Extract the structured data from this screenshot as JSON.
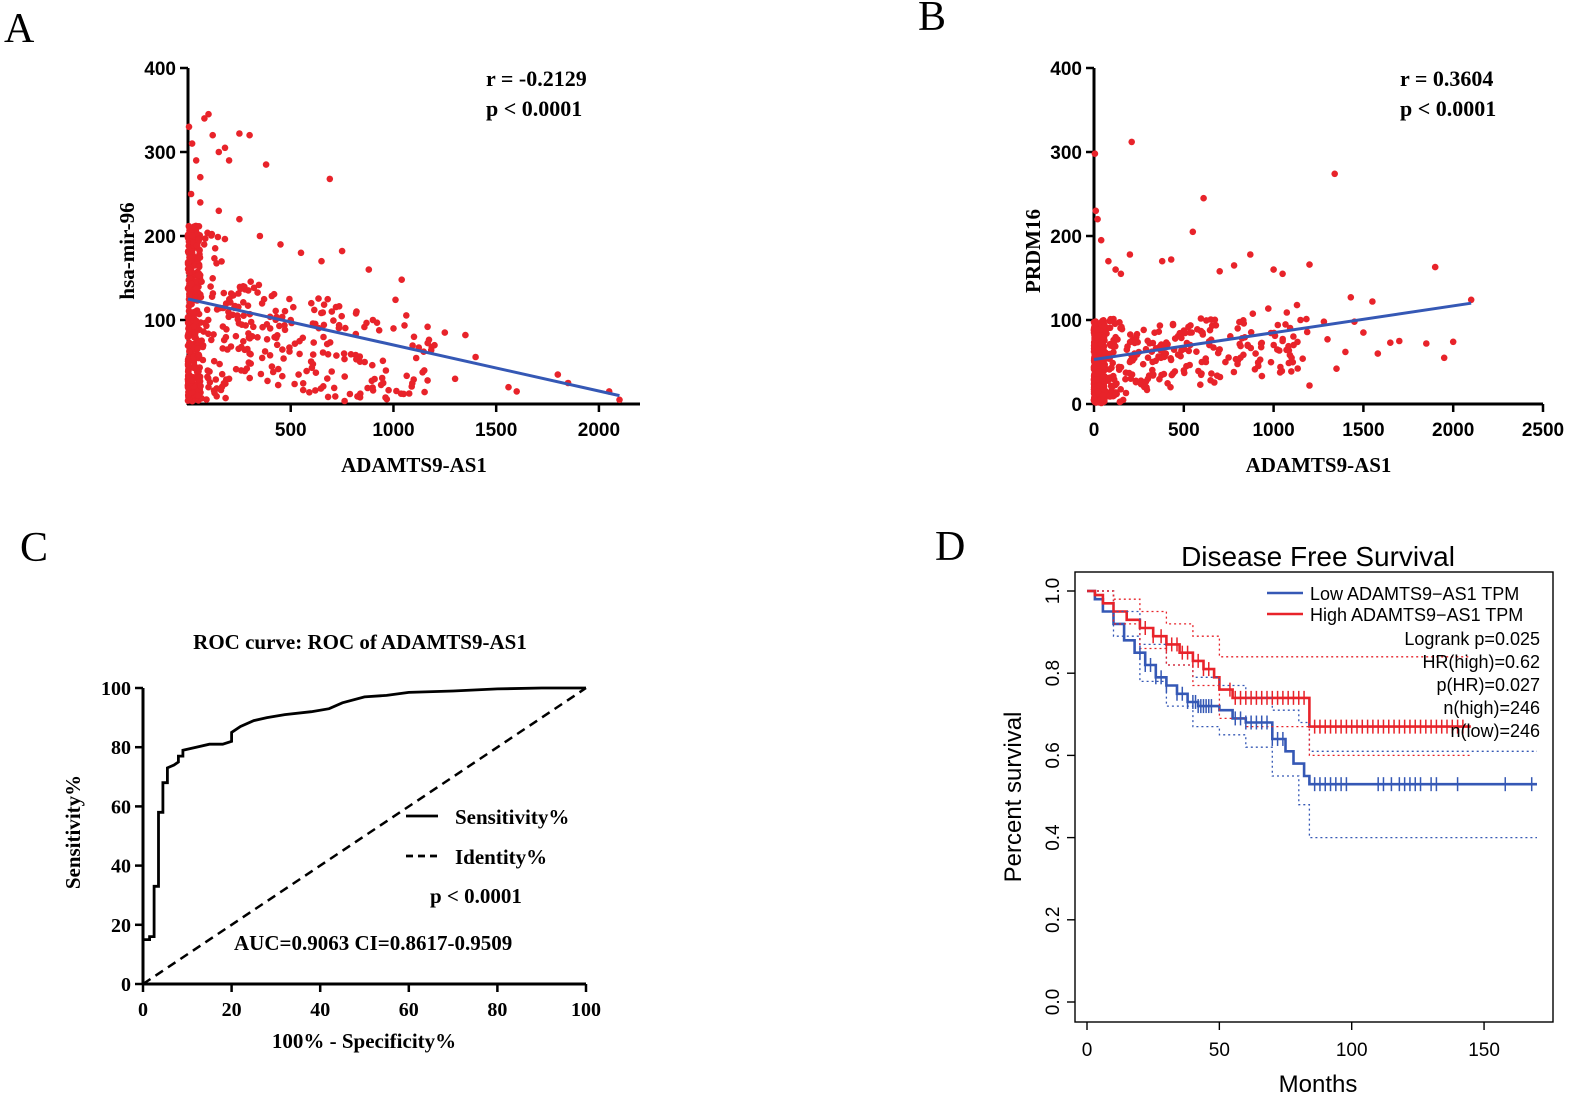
{
  "colors": {
    "red": "#e8232a",
    "blue": "#3558b5",
    "black": "#000000",
    "grey": "#666666"
  },
  "chart_data": [
    {
      "panel": "A",
      "type": "scatter",
      "title": "",
      "xlabel": "ADAMTS9-AS1",
      "ylabel": "hsa-mir-96",
      "xlim": [
        0,
        2200
      ],
      "ylim": [
        0,
        400
      ],
      "xticks": [
        500,
        1000,
        1500,
        2000
      ],
      "yticks": [
        100,
        200,
        300,
        400
      ],
      "stats": [
        "r = -0.2129",
        "p < 0.0001"
      ],
      "trend": {
        "x": [
          0,
          2100
        ],
        "y": [
          125,
          10
        ]
      },
      "points_n": 560,
      "points": [
        [
          5,
          330
        ],
        [
          20,
          310
        ],
        [
          40,
          290
        ],
        [
          60,
          270
        ],
        [
          80,
          340
        ],
        [
          100,
          345
        ],
        [
          120,
          320
        ],
        [
          150,
          300
        ],
        [
          180,
          305
        ],
        [
          200,
          290
        ],
        [
          250,
          322
        ],
        [
          300,
          320
        ],
        [
          380,
          285
        ],
        [
          690,
          268
        ],
        [
          15,
          250
        ],
        [
          60,
          240
        ],
        [
          150,
          230
        ],
        [
          250,
          220
        ],
        [
          350,
          200
        ],
        [
          450,
          190
        ],
        [
          550,
          180
        ],
        [
          650,
          170
        ],
        [
          750,
          182
        ],
        [
          880,
          160
        ],
        [
          1040,
          148
        ],
        [
          1010,
          124
        ],
        [
          820,
          110
        ],
        [
          900,
          100
        ],
        [
          1000,
          90
        ],
        [
          1100,
          80
        ],
        [
          1200,
          70
        ],
        [
          1250,
          85
        ],
        [
          1350,
          82
        ],
        [
          1400,
          56
        ],
        [
          1560,
          20
        ],
        [
          1600,
          15
        ],
        [
          1800,
          35
        ],
        [
          1850,
          25
        ],
        [
          2050,
          15
        ],
        [
          2100,
          5
        ],
        [
          600,
          120
        ],
        [
          700,
          110
        ],
        [
          500,
          100
        ],
        [
          400,
          90
        ],
        [
          300,
          60
        ],
        [
          200,
          30
        ],
        [
          100,
          20
        ],
        [
          50,
          10
        ],
        [
          1150,
          40
        ],
        [
          1300,
          30
        ],
        [
          950,
          25
        ],
        [
          1050,
          12
        ],
        [
          860,
          50
        ],
        [
          760,
          60
        ]
      ]
    },
    {
      "panel": "B",
      "type": "scatter",
      "title": "",
      "xlabel": "ADAMTS9-AS1",
      "ylabel": "PRDM16",
      "xlim": [
        0,
        2500
      ],
      "ylim": [
        0,
        400
      ],
      "xticks": [
        0,
        500,
        1000,
        1500,
        2000,
        2500
      ],
      "yticks": [
        0,
        100,
        200,
        300,
        400
      ],
      "stats": [
        "r = 0.3604",
        "p < 0.0001"
      ],
      "trend": {
        "x": [
          0,
          2100
        ],
        "y": [
          53,
          120
        ]
      },
      "points_n": 560,
      "points": [
        [
          5,
          298
        ],
        [
          10,
          230
        ],
        [
          20,
          220
        ],
        [
          40,
          195
        ],
        [
          80,
          170
        ],
        [
          120,
          160
        ],
        [
          150,
          155
        ],
        [
          200,
          178
        ],
        [
          210,
          312
        ],
        [
          380,
          170
        ],
        [
          430,
          172
        ],
        [
          550,
          205
        ],
        [
          610,
          245
        ],
        [
          700,
          158
        ],
        [
          780,
          165
        ],
        [
          870,
          178
        ],
        [
          1000,
          160
        ],
        [
          1050,
          155
        ],
        [
          1200,
          166
        ],
        [
          1340,
          274
        ],
        [
          1430,
          127
        ],
        [
          1550,
          122
        ],
        [
          1900,
          163
        ],
        [
          2100,
          124
        ],
        [
          2000,
          74
        ],
        [
          1850,
          72
        ],
        [
          1700,
          75
        ],
        [
          1580,
          60
        ],
        [
          1400,
          62
        ],
        [
          1300,
          77
        ],
        [
          1350,
          42
        ],
        [
          1200,
          22
        ],
        [
          1100,
          55
        ],
        [
          1050,
          75
        ],
        [
          900,
          60
        ],
        [
          800,
          90
        ],
        [
          700,
          65
        ],
        [
          600,
          50
        ],
        [
          500,
          40
        ],
        [
          400,
          60
        ],
        [
          300,
          30
        ],
        [
          200,
          50
        ],
        [
          100,
          20
        ],
        [
          50,
          10
        ],
        [
          1500,
          85
        ],
        [
          1450,
          98
        ],
        [
          1650,
          73
        ],
        [
          1950,
          55
        ],
        [
          1280,
          98
        ],
        [
          1150,
          100
        ]
      ]
    },
    {
      "panel": "C",
      "type": "line",
      "title": "ROC curve: ROC of  ADAMTS9-AS1",
      "xlabel": "100% - Specificity%",
      "ylabel": "Sensitivity%",
      "xlim": [
        0,
        100
      ],
      "ylim": [
        0,
        100
      ],
      "xticks": [
        0,
        20,
        40,
        60,
        80,
        100
      ],
      "yticks": [
        0,
        20,
        40,
        60,
        80,
        100
      ],
      "series": [
        {
          "name": "Sensitivity%",
          "style": "solid",
          "x": [
            0,
            0,
            1.5,
            1.5,
            2.5,
            2.5,
            3.5,
            3.5,
            4.5,
            4.5,
            5.5,
            5.5,
            7,
            8,
            8,
            9,
            9,
            12,
            15,
            18,
            20,
            20,
            22,
            25,
            28,
            32,
            38,
            42,
            45,
            50,
            55,
            60,
            70,
            80,
            90,
            100
          ],
          "y": [
            0,
            15,
            15,
            16,
            16,
            33,
            33,
            58,
            58,
            68,
            68,
            73,
            74,
            75,
            77,
            77,
            79,
            80,
            81,
            81,
            82,
            85,
            87,
            89,
            90,
            91,
            92,
            93,
            95,
            97,
            97.5,
            98.5,
            99,
            99.7,
            100,
            100
          ]
        },
        {
          "name": "Identity%",
          "style": "dashed",
          "x": [
            0,
            100
          ],
          "y": [
            0,
            100
          ]
        }
      ],
      "annotations": [
        "p < 0.0001",
        "AUC=0.9063 CI=0.8617-0.9509"
      ]
    },
    {
      "panel": "D",
      "type": "line",
      "title": "Disease Free Survival",
      "xlabel": "Months",
      "ylabel": "Percent survival",
      "xlim": [
        0,
        170
      ],
      "ylim": [
        0,
        1.0
      ],
      "xticks": [
        0,
        50,
        100,
        150
      ],
      "yticks": [
        0.0,
        0.2,
        0.4,
        0.6,
        0.8,
        1.0
      ],
      "series": [
        {
          "name": "Low ADAMTS9−AS1 TPM",
          "color": "blue",
          "x": [
            0,
            3,
            6,
            10,
            14,
            18,
            22,
            26,
            30,
            34,
            38,
            42,
            46,
            50,
            55,
            60,
            65,
            70,
            75,
            78,
            82,
            84,
            170
          ],
          "y": [
            1.0,
            0.98,
            0.95,
            0.92,
            0.88,
            0.85,
            0.82,
            0.79,
            0.77,
            0.75,
            0.73,
            0.72,
            0.72,
            0.71,
            0.69,
            0.68,
            0.68,
            0.64,
            0.61,
            0.58,
            0.55,
            0.53,
            0.53
          ]
        },
        {
          "name": "High ADAMTS9−AS1 TPM",
          "color": "red",
          "x": [
            0,
            3,
            6,
            10,
            15,
            20,
            25,
            30,
            35,
            40,
            44,
            48,
            50,
            55,
            60,
            70,
            80,
            84,
            145
          ],
          "y": [
            1.0,
            0.99,
            0.97,
            0.95,
            0.93,
            0.91,
            0.89,
            0.87,
            0.85,
            0.83,
            0.81,
            0.79,
            0.76,
            0.74,
            0.74,
            0.74,
            0.74,
            0.67,
            0.67
          ]
        },
        {
          "name": "Low CI upper",
          "color": "blue",
          "dotted": true,
          "x": [
            0,
            10,
            20,
            30,
            40,
            50,
            60,
            70,
            80,
            84,
            170
          ],
          "y": [
            1.0,
            0.95,
            0.87,
            0.82,
            0.79,
            0.77,
            0.74,
            0.71,
            0.68,
            0.61,
            0.61
          ]
        },
        {
          "name": "Low CI lower",
          "color": "blue",
          "dotted": true,
          "x": [
            0,
            10,
            20,
            30,
            40,
            50,
            60,
            70,
            80,
            84,
            170
          ],
          "y": [
            1.0,
            0.89,
            0.78,
            0.72,
            0.67,
            0.65,
            0.62,
            0.55,
            0.48,
            0.4,
            0.4
          ]
        },
        {
          "name": "High CI upper",
          "color": "red",
          "dotted": true,
          "x": [
            0,
            10,
            20,
            30,
            40,
            50,
            60,
            84,
            145
          ],
          "y": [
            1.0,
            0.98,
            0.95,
            0.92,
            0.89,
            0.84,
            0.84,
            0.84,
            0.84
          ]
        },
        {
          "name": "High CI lower",
          "color": "red",
          "dotted": true,
          "x": [
            0,
            10,
            20,
            30,
            40,
            50,
            60,
            84,
            145
          ],
          "y": [
            1.0,
            0.92,
            0.86,
            0.82,
            0.77,
            0.69,
            0.67,
            0.6,
            0.6
          ]
        }
      ],
      "legend": [
        "Low ADAMTS9−AS1 TPM",
        "High ADAMTS9−AS1 TPM"
      ],
      "stats": [
        "Logrank p=0.025",
        "HR(high)=0.62",
        "p(HR)=0.027",
        "n(high)=246",
        "n(low)=246"
      ],
      "censor_low": [
        20,
        22,
        24,
        26,
        28,
        30,
        34,
        36,
        38,
        40,
        41,
        42,
        43,
        44,
        45,
        46,
        47,
        56,
        58,
        60,
        62,
        64,
        66,
        68,
        70,
        72,
        74,
        86,
        88,
        90,
        92,
        94,
        96,
        98,
        110,
        112,
        115,
        118,
        120,
        122,
        124,
        126,
        130,
        132,
        140,
        158,
        168
      ],
      "censor_high": [
        22,
        25,
        28,
        30,
        32,
        34,
        36,
        38,
        40,
        42,
        44,
        46,
        54,
        56,
        58,
        60,
        62,
        64,
        66,
        68,
        70,
        72,
        74,
        76,
        78,
        80,
        82,
        86,
        88,
        90,
        92,
        94,
        96,
        98,
        100,
        102,
        104,
        106,
        108,
        110,
        112,
        114,
        116,
        118,
        120,
        122,
        124,
        126,
        128,
        130,
        132,
        134,
        136,
        138,
        140,
        142
      ]
    }
  ],
  "panels": {
    "A": {
      "label": "A"
    },
    "B": {
      "label": "B"
    },
    "C": {
      "label": "C"
    },
    "D": {
      "label": "D"
    }
  }
}
